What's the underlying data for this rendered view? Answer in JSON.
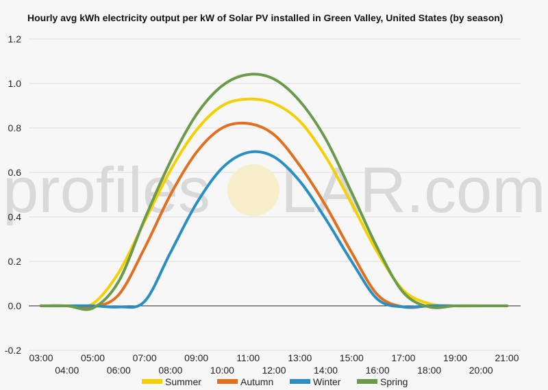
{
  "watermark": {
    "text_left": "profiles",
    "text_right": "LAR.com"
  },
  "chart_data": {
    "type": "line",
    "title": "Hourly avg kWh electricity output per kW of Solar PV installed in Green Valley, United States (by season)",
    "xlabel": "",
    "ylabel": "",
    "x": [
      "03:00",
      "04:00",
      "05:00",
      "06:00",
      "07:00",
      "08:00",
      "09:00",
      "10:00",
      "11:00",
      "12:00",
      "13:00",
      "14:00",
      "15:00",
      "16:00",
      "17:00",
      "18:00",
      "19:00",
      "20:00",
      "21:00"
    ],
    "ylim": [
      -0.2,
      1.2
    ],
    "yticks": [
      -0.2,
      0.0,
      0.2,
      0.4,
      0.6,
      0.8,
      1.0,
      1.2
    ],
    "xtick_labels_upper": [
      "03:00",
      "05:00",
      "07:00",
      "09:00",
      "11:00",
      "13:00",
      "15:00",
      "17:00",
      "19:00",
      "21:00"
    ],
    "xtick_labels_lower": [
      "04:00",
      "06:00",
      "08:00",
      "10:00",
      "12:00",
      "14:00",
      "16:00",
      "18:00",
      "20:00"
    ],
    "grid": true,
    "legend_position": "bottom",
    "series": [
      {
        "name": "Summer",
        "color": "#f5d000",
        "values": [
          0.0,
          0.0,
          0.01,
          0.15,
          0.38,
          0.61,
          0.79,
          0.9,
          0.93,
          0.91,
          0.83,
          0.67,
          0.46,
          0.24,
          0.07,
          0.01,
          0.0,
          0.0,
          0.0
        ]
      },
      {
        "name": "Autumn",
        "color": "#e07020",
        "values": [
          0.0,
          0.0,
          -0.005,
          0.05,
          0.26,
          0.5,
          0.69,
          0.8,
          0.82,
          0.77,
          0.63,
          0.45,
          0.24,
          0.05,
          -0.005,
          0.0,
          0.0,
          0.0,
          0.0
        ]
      },
      {
        "name": "Winter",
        "color": "#2a8fc0",
        "values": [
          0.0,
          0.0,
          0.0,
          -0.005,
          0.02,
          0.24,
          0.46,
          0.62,
          0.69,
          0.67,
          0.56,
          0.39,
          0.2,
          0.03,
          -0.005,
          0.0,
          0.0,
          0.0,
          0.0
        ]
      },
      {
        "name": "Spring",
        "color": "#6b9a4a",
        "values": [
          0.0,
          0.0,
          -0.01,
          0.11,
          0.39,
          0.65,
          0.86,
          0.99,
          1.04,
          1.02,
          0.92,
          0.75,
          0.51,
          0.26,
          0.06,
          -0.005,
          0.0,
          0.0,
          0.0
        ]
      }
    ]
  }
}
